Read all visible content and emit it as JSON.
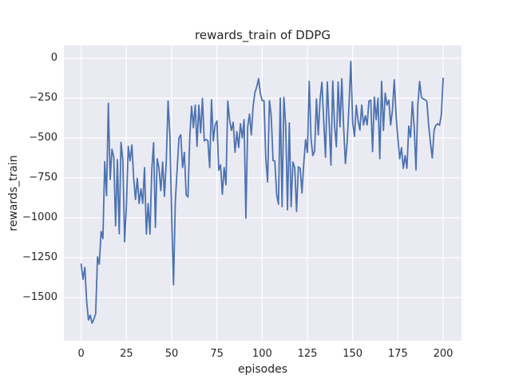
{
  "figure": {
    "title": "rewards_train of DDPG",
    "xlabel": "episodes",
    "ylabel": "rewards_train"
  },
  "axes": {
    "x_tick_labels": [
      "0",
      "25",
      "50",
      "75",
      "100",
      "125",
      "150",
      "175",
      "200"
    ],
    "y_tick_labels": [
      "0",
      "−250",
      "−500",
      "−750",
      "−1000",
      "−1250",
      "−1500"
    ]
  },
  "chart_data": {
    "type": "line",
    "title": "rewards_train of DDPG",
    "xlabel": "episodes",
    "ylabel": "rewards_train",
    "grid": true,
    "legend": null,
    "x_range": [
      0,
      200
    ],
    "x_step": 1,
    "x_tick_values": [
      0,
      25,
      50,
      75,
      100,
      125,
      150,
      175,
      200
    ],
    "y_tick_values": [
      0,
      -250,
      -500,
      -750,
      -1000,
      -1250,
      -1500
    ],
    "xlim": [
      -9.6,
      210.1
    ],
    "ylim": [
      -1770,
      80
    ],
    "line_color": "#4c72b0",
    "plot_bg": "#eaeaf2",
    "grid_color": "#ffffff",
    "text_color": "#262626",
    "values": [
      -1290,
      -1385,
      -1310,
      -1520,
      -1640,
      -1610,
      -1660,
      -1635,
      -1600,
      -1245,
      -1290,
      -1085,
      -1130,
      -648,
      -862,
      -282,
      -760,
      -570,
      -620,
      -1050,
      -635,
      -1100,
      -527,
      -640,
      -1150,
      -918,
      -552,
      -643,
      -543,
      -752,
      -885,
      -752,
      -910,
      -818,
      -910,
      -685,
      -1102,
      -910,
      -1102,
      -700,
      -530,
      -1060,
      -630,
      -690,
      -830,
      -650,
      -865,
      -650,
      -268,
      -480,
      -990,
      -1420,
      -900,
      -700,
      -500,
      -480,
      -685,
      -590,
      -855,
      -870,
      -490,
      -300,
      -435,
      -293,
      -552,
      -293,
      -468,
      -252,
      -518,
      -508,
      -518,
      -685,
      -260,
      -518,
      -418,
      -393,
      -702,
      -668,
      -852,
      -685,
      -793,
      -268,
      -385,
      -452,
      -402,
      -590,
      -460,
      -560,
      -410,
      -500,
      -385,
      -1002,
      -430,
      -350,
      -480,
      -300,
      -215,
      -180,
      -128,
      -220,
      -265,
      -265,
      -625,
      -775,
      -265,
      -360,
      -640,
      -645,
      -855,
      -915,
      -250,
      -930,
      -245,
      -420,
      -950,
      -405,
      -930,
      -650,
      -685,
      -960,
      -680,
      -690,
      -845,
      -655,
      -510,
      -590,
      -145,
      -505,
      -610,
      -580,
      -255,
      -480,
      -260,
      -150,
      -390,
      -620,
      -148,
      -400,
      -670,
      -142,
      -420,
      -555,
      -148,
      -430,
      -128,
      -430,
      -660,
      -520,
      -290,
      -20,
      -400,
      -490,
      -295,
      -390,
      -450,
      -293,
      -418,
      -360,
      -418,
      -268,
      -263,
      -585,
      -243,
      -385,
      -250,
      -630,
      -145,
      -452,
      -218,
      -293,
      -263,
      -418,
      -323,
      -135,
      -360,
      -502,
      -630,
      -560,
      -690,
      -610,
      -690,
      -425,
      -495,
      -272,
      -430,
      -700,
      -295,
      -145,
      -245,
      -255,
      -260,
      -270,
      -420,
      -530,
      -625,
      -450,
      -420,
      -410,
      -420,
      -355,
      -125
    ]
  }
}
